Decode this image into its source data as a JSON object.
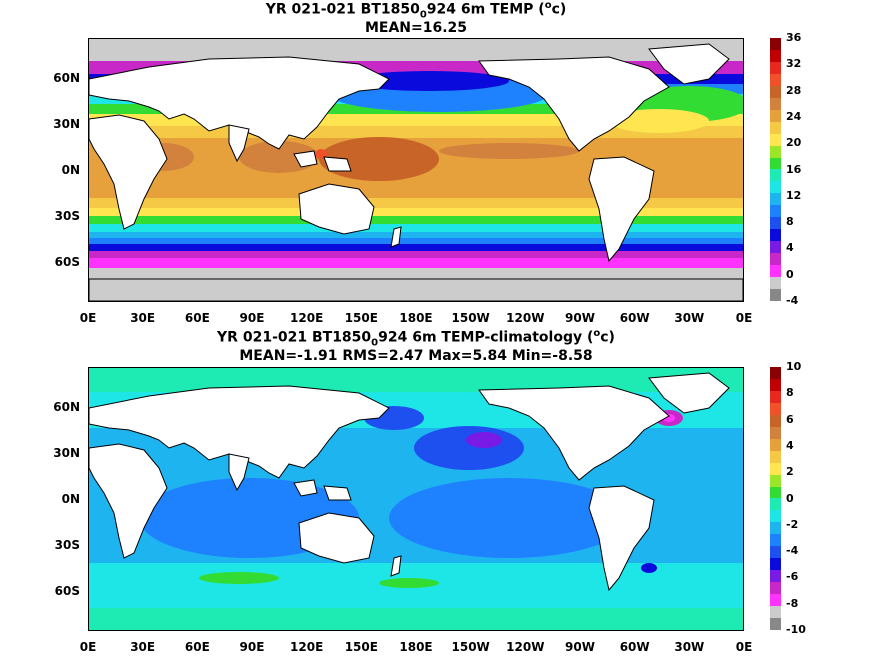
{
  "top": {
    "title_pre": "YR 021-021 BT1850",
    "title_sub": "0",
    "title_post": "924 6m TEMP (",
    "title_sup": "o",
    "title_end": "c)",
    "stats": "MEAN=16.25",
    "lat_labels": [
      "60N",
      "30N",
      "0N",
      "30S",
      "60S"
    ],
    "lon_labels": [
      "0E",
      "30E",
      "60E",
      "90E",
      "120E",
      "150E",
      "180E",
      "150W",
      "120W",
      "90W",
      "60W",
      "30W",
      "0E"
    ],
    "colorbar_labels": [
      "36",
      "32",
      "28",
      "24",
      "20",
      "16",
      "12",
      "8",
      "4",
      "0",
      "-4"
    ],
    "colorbar_colors": [
      "#8b0000",
      "#c00000",
      "#e8281e",
      "#f0502a",
      "#c86428",
      "#d2823c",
      "#e6a03c",
      "#f5c846",
      "#ffe650",
      "#9be628",
      "#32dc32",
      "#1eebb4",
      "#1ee6e6",
      "#1eb4f0",
      "#1e82ff",
      "#1e50f0",
      "#0a0adc",
      "#7a1ae6",
      "#c828c8",
      "#ff32ff",
      "#cccccc",
      "#888888"
    ]
  },
  "bottom": {
    "title_pre": "YR 021-021 BT1850",
    "title_sub": "0",
    "title_post": "924 6m TEMP-climatology (",
    "title_sup": "o",
    "title_end": "c)",
    "stats": "MEAN=-1.91   RMS=2.47   Max=5.84   Min=-8.58",
    "lat_labels": [
      "60N",
      "30N",
      "0N",
      "30S",
      "60S"
    ],
    "lon_labels": [
      "0E",
      "30E",
      "60E",
      "90E",
      "120E",
      "150E",
      "180E",
      "150W",
      "120W",
      "90W",
      "60W",
      "30W",
      "0E"
    ],
    "colorbar_labels": [
      "10",
      "8",
      "6",
      "4",
      "2",
      "0",
      "-2",
      "-4",
      "-6",
      "-8",
      "-10"
    ],
    "colorbar_colors": [
      "#8b0000",
      "#c00000",
      "#e8281e",
      "#f0502a",
      "#c86428",
      "#d2823c",
      "#e6a03c",
      "#f5c846",
      "#ffe650",
      "#9be628",
      "#32dc32",
      "#1eebb4",
      "#1ee6e6",
      "#1eb4f0",
      "#1e82ff",
      "#1e50f0",
      "#0a0adc",
      "#7a1ae6",
      "#c828c8",
      "#ff32ff",
      "#cccccc",
      "#888888"
    ]
  },
  "colors": {
    "land": "#ffffff",
    "ice": "#c8c8c8",
    "coast": "#000000"
  }
}
